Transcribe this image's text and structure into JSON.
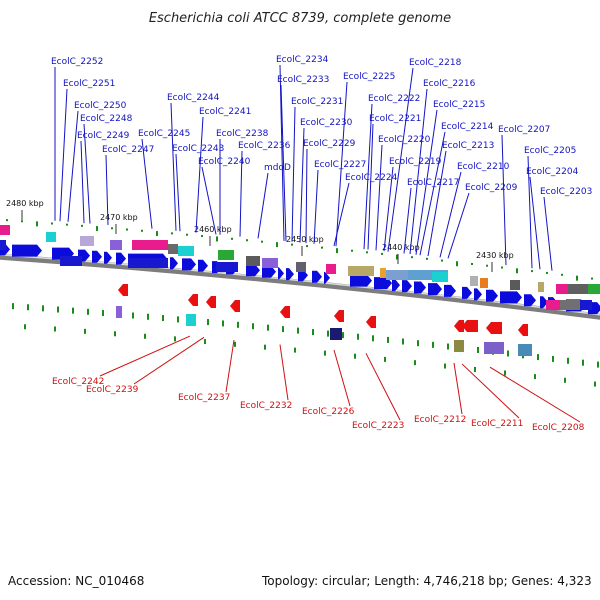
{
  "title": "Escherichia coli ATCC 8739, complete genome",
  "accession_text": "Accession: NC_010468",
  "topology_text": "Topology: circular; Length: 4,746,218 bp; Genes: 4,323",
  "colors": {
    "top_label": "#1313c4",
    "bottom_label": "#d01010",
    "gene_arrow": "#0b0bdc",
    "backbone": "#7d7d7d",
    "dots": "#1a8a1a"
  },
  "ticks": [
    "2480 kbp",
    "2470 kbp",
    "2460 kbp",
    "2450 kbp",
    "2440 kbp",
    "2430 kbp"
  ],
  "top_genes": [
    "EcolC_2252",
    "EcolC_2251",
    "EcolC_2250",
    "EcolC_2248",
    "EcolC_2249",
    "EcolC_2247",
    "EcolC_2245",
    "EcolC_2244",
    "EcolC_2243",
    "EcolC_2241",
    "EcolC_2240",
    "EcolC_2238",
    "EcolC_2236",
    "mdoD",
    "EcolC_2234",
    "EcolC_2233",
    "EcolC_2231",
    "EcolC_2230",
    "EcolC_2229",
    "EcolC_2227",
    "EcolC_2225",
    "EcolC_2224",
    "EcolC_2222",
    "EcolC_2221",
    "EcolC_2220",
    "EcolC_2219",
    "EcolC_2218",
    "EcolC_2217",
    "EcolC_2216",
    "EcolC_2215",
    "EcolC_2214",
    "EcolC_2213",
    "EcolC_2210",
    "EcolC_2209",
    "EcolC_2207",
    "EcolC_2205",
    "EcolC_2204",
    "EcolC_2203"
  ],
  "bottom_genes": [
    "EcolC_2242",
    "EcolC_2239",
    "EcolC_2237",
    "EcolC_2232",
    "EcolC_2226",
    "EcolC_2223",
    "EcolC_2212",
    "EcolC_2211",
    "EcolC_2208"
  ]
}
